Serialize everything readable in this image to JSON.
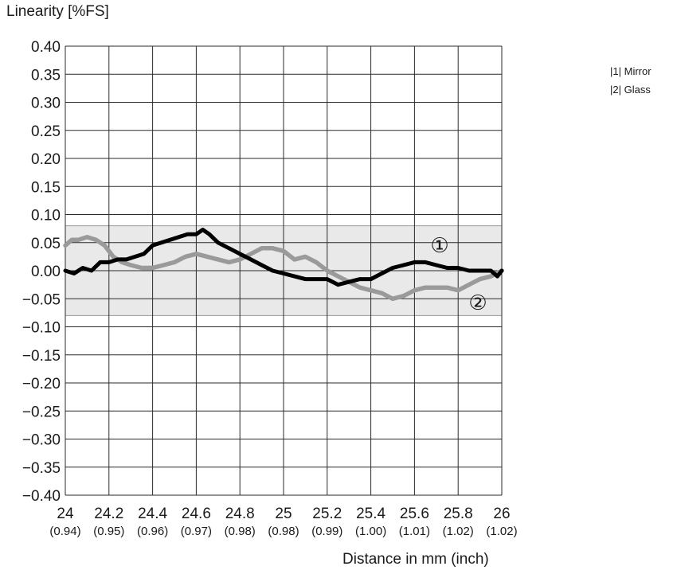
{
  "chart_data": {
    "type": "line",
    "ylabel": "Linearity [%FS]",
    "xlabel": "Distance in mm (inch)",
    "xlim": [
      24,
      26
    ],
    "ylim": [
      -0.4,
      0.4
    ],
    "y_ticks": [
      "0.40",
      "0.35",
      "0.30",
      "0.25",
      "0.20",
      "0.15",
      "0.10",
      "0.05",
      "0.00",
      "−0.05",
      "−0.10",
      "−0.15",
      "−0.20",
      "−0.25",
      "−0.30",
      "−0.35",
      "−0.40"
    ],
    "x_ticks": [
      "24",
      "24.2",
      "24.4",
      "24.6",
      "24.8",
      "25",
      "25.2",
      "25.4",
      "25.6",
      "25.8",
      "26"
    ],
    "x_ticks_inch": [
      "(0.94)",
      "(0.95)",
      "(0.96)",
      "(0.97)",
      "(0.98)",
      "(0.98)",
      "(0.99)",
      "(1.00)",
      "(1.01)",
      "(1.02)",
      "(1.02)"
    ],
    "grid": true,
    "tolerance_band": [
      -0.08,
      0.08
    ],
    "legend": [
      {
        "marker": "|1|",
        "label": "Mirror"
      },
      {
        "marker": "|2|",
        "label": "Glass"
      }
    ],
    "series": [
      {
        "marker": "①",
        "color": "#000000",
        "x": [
          24.0,
          24.04,
          24.08,
          24.12,
          24.16,
          24.2,
          24.24,
          24.28,
          24.32,
          24.36,
          24.4,
          24.44,
          24.48,
          24.52,
          24.56,
          24.6,
          24.63,
          24.66,
          24.7,
          24.75,
          24.8,
          24.85,
          24.9,
          24.95,
          25.0,
          25.05,
          25.1,
          25.15,
          25.2,
          25.25,
          25.3,
          25.35,
          25.4,
          25.45,
          25.5,
          25.55,
          25.6,
          25.65,
          25.7,
          25.75,
          25.8,
          25.85,
          25.9,
          25.95,
          25.98,
          26.0
        ],
        "values": [
          0.0,
          -0.005,
          0.005,
          0.0,
          0.015,
          0.015,
          0.02,
          0.02,
          0.025,
          0.03,
          0.045,
          0.05,
          0.055,
          0.06,
          0.065,
          0.065,
          0.073,
          0.065,
          0.05,
          0.04,
          0.03,
          0.02,
          0.01,
          0.0,
          -0.005,
          -0.01,
          -0.015,
          -0.015,
          -0.015,
          -0.025,
          -0.02,
          -0.015,
          -0.015,
          -0.005,
          0.005,
          0.01,
          0.015,
          0.015,
          0.01,
          0.005,
          0.005,
          0.0,
          0.0,
          0.0,
          -0.01,
          0.0
        ]
      },
      {
        "marker": "②",
        "color": "#9a9a9a",
        "x": [
          24.0,
          24.03,
          24.06,
          24.1,
          24.14,
          24.18,
          24.22,
          24.26,
          24.3,
          24.35,
          24.4,
          24.45,
          24.5,
          24.55,
          24.6,
          24.65,
          24.7,
          24.75,
          24.8,
          24.85,
          24.9,
          24.95,
          25.0,
          25.05,
          25.1,
          25.15,
          25.2,
          25.25,
          25.3,
          25.35,
          25.4,
          25.45,
          25.5,
          25.55,
          25.6,
          25.65,
          25.7,
          25.75,
          25.8,
          25.85,
          25.9,
          25.95,
          26.0
        ],
        "values": [
          0.045,
          0.055,
          0.055,
          0.06,
          0.055,
          0.045,
          0.025,
          0.015,
          0.01,
          0.005,
          0.005,
          0.01,
          0.015,
          0.025,
          0.03,
          0.025,
          0.02,
          0.015,
          0.02,
          0.03,
          0.04,
          0.04,
          0.035,
          0.02,
          0.025,
          0.015,
          0.0,
          -0.01,
          -0.02,
          -0.03,
          -0.035,
          -0.04,
          -0.05,
          -0.045,
          -0.035,
          -0.03,
          -0.03,
          -0.03,
          -0.035,
          -0.025,
          -0.015,
          -0.01,
          0.0
        ]
      }
    ]
  }
}
